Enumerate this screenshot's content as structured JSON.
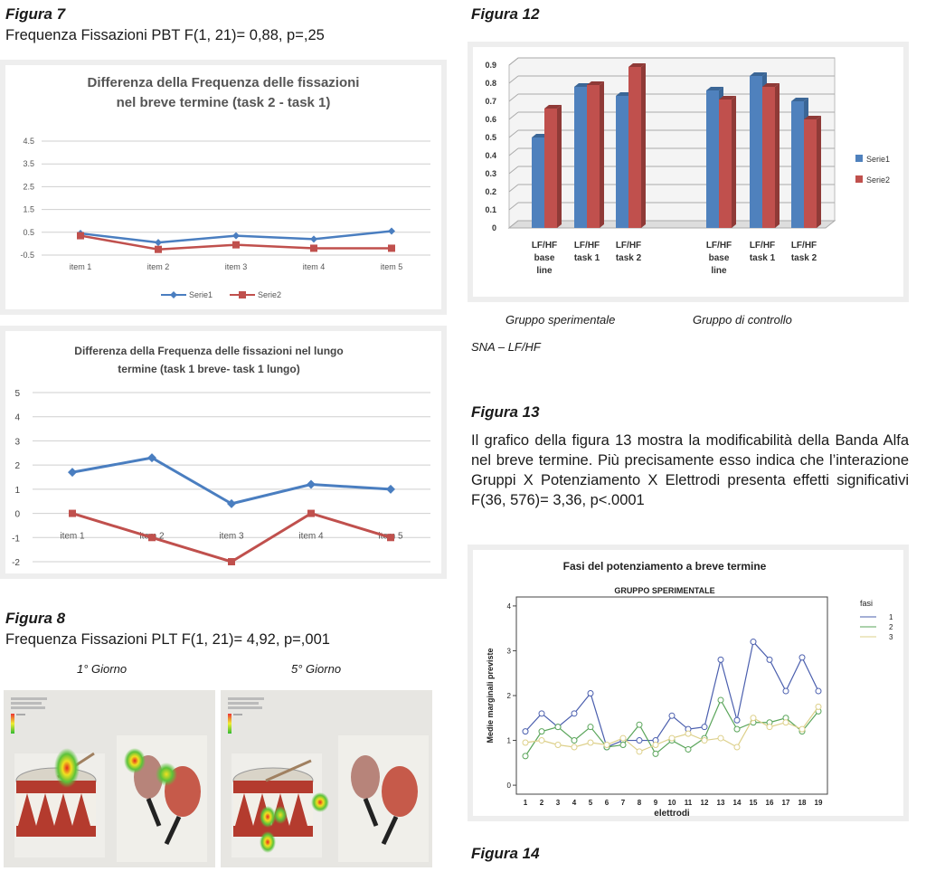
{
  "fig7": {
    "label": "Figura 7",
    "caption": "Frequenza Fissazioni PBT F(1, 21)= 0,88, p=,25"
  },
  "fig8": {
    "label": "Figura 8",
    "caption": "Frequenza Fissazioni PLT F(1, 21)= 4,92, p=,001",
    "day1": "1° Giorno",
    "day5": "5° Giorno"
  },
  "fig12": {
    "label": "Figura 12",
    "group1": "Gruppo sperimentale",
    "group2": "Gruppo di controllo",
    "sna": "SNA – LF/HF"
  },
  "fig13": {
    "label": "Figura 13",
    "text": "Il grafico della figura 13 mostra la modificabilità della Banda Alfa nel breve termine. Più precisamente esso indica che l’interazione Gruppi X Potenziamento X Elettrodi presenta effetti significativi F(36, 576)= 3,36, p<.0001"
  },
  "fig14": {
    "label": "Figura 14"
  },
  "chart_data": [
    {
      "id": "chart1",
      "type": "line",
      "title": "Differenza della Frequenza delle fissazioni nel breve termine (task 2 - task 1)",
      "title_lines": [
        "Differenza della Frequenza delle fissazioni",
        "nel breve termine (task 2 - task 1)"
      ],
      "categories": [
        "item 1",
        "item 2",
        "item 3",
        "item 4",
        "item 5"
      ],
      "yticks": [
        "4.5",
        "3.5",
        "2.5",
        "1.5",
        "0.5",
        "-0.5"
      ],
      "ylim": [
        -0.5,
        4.5
      ],
      "grid": true,
      "legend": "bottom",
      "series": [
        {
          "name": "Serie1",
          "values": [
            0.45,
            0.05,
            0.35,
            0.2,
            0.55
          ],
          "color": "#4a7ec0"
        },
        {
          "name": "Serie2",
          "values": [
            0.35,
            -0.25,
            -0.05,
            -0.2,
            -0.2
          ],
          "color": "#c0504d"
        }
      ]
    },
    {
      "id": "chart2",
      "type": "line",
      "title": "Differenza della Frequenza delle fissazioni nel lungo termine (task 1 breve- task 1 lungo)",
      "title_lines": [
        "Differenza della Frequenza delle fissazioni nel lungo",
        "termine (task 1 breve- task 1 lungo)"
      ],
      "categories": [
        "item 1",
        "item 2",
        "item 3",
        "item 4",
        "item 5"
      ],
      "yticks": [
        "5",
        "4",
        "3",
        "2",
        "1",
        "0",
        "-1",
        "-2"
      ],
      "ylim": [
        -2,
        5
      ],
      "grid": true,
      "series": [
        {
          "values": [
            1.7,
            2.3,
            0.4,
            1.2,
            1.0
          ],
          "color": "#4a7ec0"
        },
        {
          "values": [
            0,
            -1,
            -2,
            0,
            -1
          ],
          "color": "#c0504d"
        }
      ]
    },
    {
      "id": "chart3",
      "type": "bar",
      "categories": [
        "LF/HF base line",
        "LF/HF task 1",
        "LF/HF task 2",
        "LF/HF base line",
        "LF/HF task 1",
        "LF/HF task 2"
      ],
      "category_lines": [
        [
          "LF/HF",
          "base",
          "line"
        ],
        [
          "LF/HF",
          "task 1"
        ],
        [
          "LF/HF",
          "task 2"
        ],
        [
          "LF/HF",
          "base",
          "line"
        ],
        [
          "LF/HF",
          "task 1"
        ],
        [
          "LF/HF",
          "task 2"
        ]
      ],
      "yticks": [
        "0.9",
        "0.8",
        "0.7",
        "0.6",
        "0.5",
        "0.4",
        "0.3",
        "0.2",
        "0.1",
        "0"
      ],
      "ylim": [
        0,
        0.9
      ],
      "grid": true,
      "legend": "right",
      "series": [
        {
          "name": "Serie1",
          "values": [
            0.5,
            0.78,
            0.73,
            0.76,
            0.84,
            0.7
          ],
          "color": "#4f81bd"
        },
        {
          "name": "Serie2",
          "values": [
            0.66,
            0.79,
            0.89,
            0.71,
            0.78,
            0.6
          ],
          "color": "#c0504d"
        }
      ]
    },
    {
      "id": "chart4",
      "type": "line",
      "title": "Fasi del potenziamento a breve termine",
      "subtitle": "GRUPPO SPERIMENTALE",
      "xlabel": "elettrodi",
      "ylabel": "Medie marginali previste",
      "legend_title": "fasi",
      "x": [
        1,
        2,
        3,
        4,
        5,
        6,
        7,
        8,
        9,
        10,
        11,
        12,
        13,
        14,
        15,
        16,
        17,
        18,
        19
      ],
      "xticks": [
        "1",
        "2",
        "3",
        "4",
        "5",
        "6",
        "7",
        "8",
        "9",
        "10",
        "11",
        "12",
        "13",
        "14",
        "15",
        "16",
        "17",
        "18",
        "19"
      ],
      "yticks": [
        "4",
        "3",
        "2",
        "1",
        "0"
      ],
      "ylim": [
        -0.2,
        4.2
      ],
      "legend": "right",
      "series": [
        {
          "name": "1",
          "values": [
            1.2,
            1.6,
            1.3,
            1.6,
            2.05,
            0.85,
            1.0,
            1.0,
            1.0,
            1.55,
            1.25,
            1.3,
            2.8,
            1.45,
            3.2,
            2.8,
            2.1,
            2.85,
            2.1
          ],
          "color": "#4b5fae"
        },
        {
          "name": "2",
          "values": [
            0.65,
            1.2,
            1.3,
            1.0,
            1.3,
            0.85,
            0.9,
            1.35,
            0.7,
            1.0,
            0.8,
            1.05,
            1.9,
            1.25,
            1.4,
            1.4,
            1.5,
            1.2,
            1.65
          ],
          "color": "#5aa55a"
        },
        {
          "name": "3",
          "values": [
            0.95,
            1.0,
            0.9,
            0.85,
            0.95,
            0.9,
            1.05,
            0.75,
            0.9,
            1.05,
            1.15,
            1.0,
            1.05,
            0.85,
            1.5,
            1.3,
            1.4,
            1.25,
            1.75
          ],
          "color": "#ddd08a"
        }
      ]
    }
  ]
}
